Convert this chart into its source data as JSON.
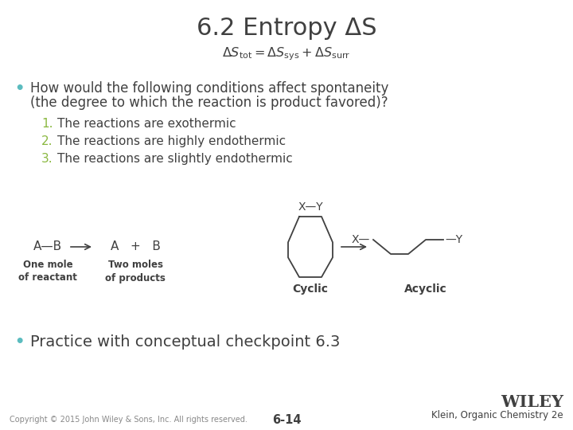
{
  "title": "6.2 Entropy ΔS",
  "bullet1_line1": "How would the following conditions affect spontaneity",
  "bullet1_line2": "(the degree to which the reaction is product favored)?",
  "items": [
    "The reactions are exothermic",
    "The reactions are highly endothermic",
    "The reactions are slightly endothermic"
  ],
  "bullet2": "Practice with conceptual checkpoint 6.3",
  "label_one_mole": "One mole\nof reactant",
  "label_two_moles": "Two moles\nof products",
  "label_cyclic": "Cyclic",
  "label_acyclic": "Acyclic",
  "copyright": "Copyright © 2015 John Wiley & Sons, Inc. All rights reserved.",
  "page_num": "6-14",
  "publisher": "WILEY",
  "book_info": "Klein, Organic Chemistry 2e",
  "bg_color": "#ffffff",
  "title_color": "#404040",
  "text_color": "#404040",
  "bullet_color": "#5bbcbf",
  "number_color": "#8ab840",
  "diagram_color": "#404040",
  "footer_color": "#888888"
}
